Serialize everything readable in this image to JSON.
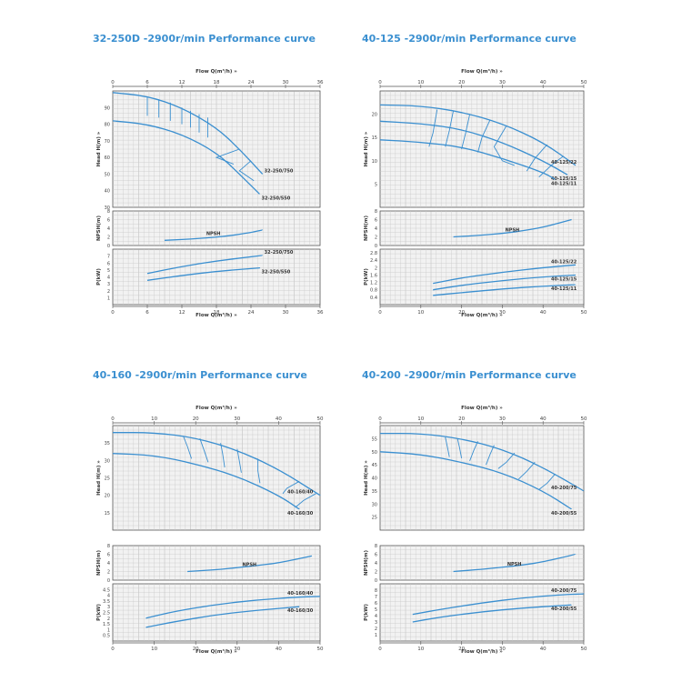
{
  "chart_data": [
    {
      "type": "line",
      "title": "32-250D -2900r/min Performance curve",
      "x_label": "Flow Q(m³/h) »",
      "x_ticks": [
        0,
        6,
        12,
        18,
        24,
        30,
        36
      ],
      "xlim": [
        0,
        36
      ],
      "accent": "#3a8fd0",
      "panels": [
        {
          "id": "head",
          "ylabel": "Head H(m) »",
          "ylim": [
            30,
            100
          ],
          "yticks": [
            30,
            40,
            50,
            60,
            70,
            80,
            90
          ],
          "series": [
            {
              "name": "32-250/750",
              "x": [
                0,
                6,
                12,
                18,
                22,
                26
              ],
              "y": [
                99,
                97,
                90,
                78,
                65,
                50
              ]
            },
            {
              "name": "32-250/550",
              "x": [
                0,
                6,
                12,
                18,
                22,
                25.5
              ],
              "y": [
                82,
                80,
                74,
                63,
                50,
                38
              ]
            }
          ],
          "iso_curves": [
            {
              "x": [
                6,
                6
              ],
              "y": [
                96,
                85
              ]
            },
            {
              "x": [
                8,
                8
              ],
              "y": [
                95,
                84
              ]
            },
            {
              "x": [
                10,
                10
              ],
              "y": [
                93,
                82
              ]
            },
            {
              "x": [
                12,
                12
              ],
              "y": [
                90,
                80
              ]
            },
            {
              "x": [
                13.5,
                13.5
              ],
              "y": [
                88,
                78
              ]
            },
            {
              "x": [
                15,
                15
              ],
              "y": [
                86,
                75
              ]
            },
            {
              "x": [
                16.5,
                16.5
              ],
              "y": [
                84,
                72
              ]
            },
            {
              "x": [
                22,
                18,
                21
              ],
              "y": [
                65,
                60,
                56
              ]
            },
            {
              "x": [
                24,
                22,
                24.5
              ],
              "y": [
                58,
                52,
                46
              ]
            }
          ]
        },
        {
          "id": "npsh",
          "ylabel": "NPSH(m)",
          "ylim": [
            0,
            8
          ],
          "yticks": [
            0,
            2,
            4,
            6,
            8
          ],
          "series": [
            {
              "name": "NPSH",
              "x": [
                9,
                15,
                20,
                24,
                26
              ],
              "y": [
                1.2,
                1.6,
                2.2,
                3.0,
                3.6
              ]
            }
          ]
        },
        {
          "id": "power",
          "ylabel": "P(kW)",
          "ylim": [
            0,
            8
          ],
          "yticks": [
            1,
            2,
            3,
            4,
            5,
            6,
            7
          ],
          "series": [
            {
              "name": "32-250/750",
              "x": [
                6,
                12,
                18,
                24,
                26
              ],
              "y": [
                4.5,
                5.5,
                6.3,
                6.9,
                7.1
              ]
            },
            {
              "name": "32-250/550",
              "x": [
                6,
                12,
                18,
                24,
                25.5
              ],
              "y": [
                3.5,
                4.2,
                4.8,
                5.2,
                5.3
              ]
            }
          ]
        }
      ]
    },
    {
      "type": "line",
      "title": "40-125 -2900r/min Performance curve",
      "x_label": "Flow Q(m³/h) »",
      "x_ticks": [
        0,
        10,
        20,
        30,
        40,
        50
      ],
      "xlim": [
        0,
        50
      ],
      "accent": "#3a8fd0",
      "panels": [
        {
          "id": "head",
          "ylabel": "Head H(m) »",
          "ylim": [
            0,
            25
          ],
          "yticks": [
            5,
            10,
            15,
            20
          ],
          "series": [
            {
              "name": "40-125/22",
              "x": [
                0,
                10,
                20,
                30,
                40,
                48
              ],
              "y": [
                22,
                21.8,
                20.5,
                18,
                14,
                9
              ]
            },
            {
              "name": "40-125/15",
              "x": [
                0,
                10,
                20,
                30,
                40,
                46
              ],
              "y": [
                18.5,
                18,
                16.8,
                14,
                10,
                7
              ]
            },
            {
              "name": "40-125/11",
              "x": [
                0,
                10,
                20,
                30,
                40,
                43
              ],
              "y": [
                14.5,
                14,
                13,
                10.5,
                7.5,
                6
              ]
            }
          ],
          "iso_curves": [
            {
              "x": [
                14,
                13,
                12
              ],
              "y": [
                21,
                16,
                13
              ]
            },
            {
              "x": [
                18,
                17,
                16
              ],
              "y": [
                20.8,
                16.5,
                13
              ]
            },
            {
              "x": [
                22,
                21,
                20
              ],
              "y": [
                20,
                16,
                12.5
              ]
            },
            {
              "x": [
                27,
                25,
                24
              ],
              "y": [
                18.8,
                15,
                11.8
              ]
            },
            {
              "x": [
                31,
                28,
                30,
                33
              ],
              "y": [
                17.5,
                13,
                10,
                9
              ]
            },
            {
              "x": [
                41,
                38,
                36
              ],
              "y": [
                13.5,
                10.5,
                7.8
              ]
            },
            {
              "x": [
                45,
                42,
                39
              ],
              "y": [
                11,
                9,
                6.5
              ]
            }
          ]
        },
        {
          "id": "npsh",
          "ylabel": "NPSH(m)",
          "ylim": [
            0,
            8
          ],
          "yticks": [
            0,
            2,
            4,
            6,
            8
          ],
          "series": [
            {
              "name": "NPSH",
              "x": [
                18,
                25,
                30,
                35,
                40,
                47
              ],
              "y": [
                2.0,
                2.4,
                2.8,
                3.4,
                4.2,
                6.0
              ]
            }
          ]
        },
        {
          "id": "power",
          "ylabel": "P(kW)",
          "ylim": [
            0,
            3
          ],
          "yticks": [
            0.4,
            0.8,
            1.2,
            1.6,
            2,
            2.4,
            2.8
          ],
          "series": [
            {
              "name": "40-125/22",
              "x": [
                13,
                20,
                30,
                40,
                48
              ],
              "y": [
                1.15,
                1.45,
                1.75,
                2.0,
                2.15
              ]
            },
            {
              "name": "40-125/15",
              "x": [
                13,
                20,
                30,
                40,
                48
              ],
              "y": [
                0.8,
                1.05,
                1.3,
                1.5,
                1.6
              ]
            },
            {
              "name": "40-125/11",
              "x": [
                13,
                20,
                30,
                40,
                48
              ],
              "y": [
                0.5,
                0.65,
                0.85,
                1.0,
                1.08
              ]
            }
          ]
        }
      ]
    },
    {
      "type": "line",
      "title": "40-160 -2900r/min Performance curve",
      "x_label": "Flow Q(m³/h) »",
      "x_ticks": [
        0,
        10,
        20,
        30,
        40,
        50
      ],
      "xlim": [
        0,
        50
      ],
      "accent": "#3a8fd0",
      "panels": [
        {
          "id": "head",
          "ylabel": "Head H(m) »",
          "ylim": [
            10,
            40
          ],
          "yticks": [
            15,
            20,
            25,
            30,
            35
          ],
          "series": [
            {
              "name": "40-160/40",
              "x": [
                0,
                10,
                20,
                30,
                40,
                50
              ],
              "y": [
                38,
                38,
                36.5,
                33,
                27.5,
                20
              ]
            },
            {
              "name": "40-160/30",
              "x": [
                0,
                10,
                20,
                30,
                40,
                45
              ],
              "y": [
                32,
                31.5,
                29,
                25.5,
                20,
                16
              ]
            }
          ],
          "iso_curves": [
            {
              "x": [
                17,
                18,
                19
              ],
              "y": [
                37,
                34,
                30.5
              ]
            },
            {
              "x": [
                21,
                22,
                23
              ],
              "y": [
                36.3,
                33,
                29.5
              ]
            },
            {
              "x": [
                26,
                26.5,
                27
              ],
              "y": [
                35,
                32,
                28
              ]
            },
            {
              "x": [
                30,
                30.5,
                31
              ],
              "y": [
                33.3,
                30,
                26.5
              ]
            },
            {
              "x": [
                35,
                35,
                35.5
              ],
              "y": [
                30.5,
                27,
                23.5
              ]
            },
            {
              "x": [
                45,
                42,
                41
              ],
              "y": [
                24,
                22,
                20.5
              ]
            },
            {
              "x": [
                49,
                46,
                44
              ],
              "y": [
                20.5,
                18.5,
                16.5
              ]
            }
          ]
        },
        {
          "id": "npsh",
          "ylabel": "NPSH(m)",
          "ylim": [
            0,
            8
          ],
          "yticks": [
            0,
            2,
            4,
            6,
            8
          ],
          "series": [
            {
              "name": "NPSH",
              "x": [
                18,
                25,
                30,
                35,
                40,
                48
              ],
              "y": [
                2.0,
                2.4,
                2.9,
                3.4,
                4.0,
                5.6
              ]
            }
          ]
        },
        {
          "id": "power",
          "ylabel": "P(kW)",
          "ylim": [
            0,
            5
          ],
          "yticks": [
            0.5,
            1,
            1.5,
            2,
            2.5,
            3,
            3.5,
            4,
            4.5
          ],
          "series": [
            {
              "name": "40-160/40",
              "x": [
                8,
                15,
                25,
                35,
                45,
                50
              ],
              "y": [
                2.0,
                2.6,
                3.2,
                3.6,
                3.85,
                3.9
              ]
            },
            {
              "name": "40-160/30",
              "x": [
                8,
                15,
                25,
                35,
                45
              ],
              "y": [
                1.2,
                1.7,
                2.3,
                2.7,
                3.0
              ]
            }
          ]
        }
      ]
    },
    {
      "type": "line",
      "title": "40-200 -2900r/min Performance curve",
      "x_label": "Flow Q(m³/h) »",
      "x_ticks": [
        0,
        10,
        20,
        30,
        40,
        50
      ],
      "xlim": [
        0,
        50
      ],
      "accent": "#3a8fd0",
      "panels": [
        {
          "id": "head",
          "ylabel": "Head H(m) »",
          "ylim": [
            20,
            60
          ],
          "yticks": [
            25,
            30,
            35,
            40,
            45,
            50,
            55
          ],
          "series": [
            {
              "name": "40-200/75",
              "x": [
                0,
                10,
                20,
                30,
                40,
                50
              ],
              "y": [
                57,
                57,
                55,
                51,
                44,
                35
              ]
            },
            {
              "name": "40-200/55",
              "x": [
                0,
                10,
                20,
                30,
                40,
                47
              ],
              "y": [
                50,
                49,
                46,
                42,
                35,
                28
              ]
            }
          ],
          "iso_curves": [
            {
              "x": [
                16,
                16.5,
                17
              ],
              "y": [
                55.5,
                52,
                48
              ]
            },
            {
              "x": [
                19,
                19.5,
                20
              ],
              "y": [
                55,
                51.5,
                47.5
              ]
            },
            {
              "x": [
                24,
                23,
                22
              ],
              "y": [
                54,
                50.5,
                46.5
              ]
            },
            {
              "x": [
                28,
                27,
                26
              ],
              "y": [
                52.5,
                49,
                45
              ]
            },
            {
              "x": [
                33,
                31,
                29
              ],
              "y": [
                49.5,
                46,
                43.5
              ]
            },
            {
              "x": [
                38,
                36,
                34
              ],
              "y": [
                46,
                42.5,
                39.5
              ]
            },
            {
              "x": [
                43,
                41,
                39
              ],
              "y": [
                41.5,
                38,
                35.5
              ]
            }
          ]
        },
        {
          "id": "npsh",
          "ylabel": "NPSH(m)",
          "ylim": [
            0,
            8
          ],
          "yticks": [
            0,
            2,
            4,
            6,
            8
          ],
          "series": [
            {
              "name": "NPSH",
              "x": [
                18,
                25,
                30,
                35,
                40,
                48
              ],
              "y": [
                2.0,
                2.5,
                3.0,
                3.5,
                4.2,
                6.0
              ]
            }
          ]
        },
        {
          "id": "power",
          "ylabel": "P(kW)",
          "ylim": [
            0,
            9
          ],
          "yticks": [
            1,
            2,
            3,
            4,
            5,
            6,
            7,
            8
          ],
          "series": [
            {
              "name": "40-200/75",
              "x": [
                8,
                15,
                25,
                35,
                45,
                50
              ],
              "y": [
                4.2,
                5.0,
                6.0,
                6.8,
                7.3,
                7.4
              ]
            },
            {
              "name": "40-200/55",
              "x": [
                8,
                15,
                25,
                35,
                45,
                47
              ],
              "y": [
                3.0,
                3.8,
                4.6,
                5.2,
                5.6,
                5.7
              ]
            }
          ]
        }
      ]
    }
  ]
}
